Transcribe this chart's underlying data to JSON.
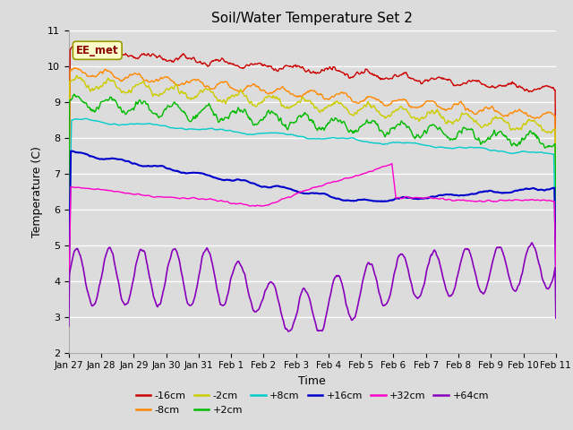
{
  "title": "Soil/Water Temperature Set 2",
  "xlabel": "Time",
  "ylabel": "Temperature (C)",
  "ylim": [
    2.0,
    11.0
  ],
  "yticks": [
    2.0,
    3.0,
    4.0,
    5.0,
    6.0,
    7.0,
    8.0,
    9.0,
    10.0,
    11.0
  ],
  "background_color": "#dcdcdc",
  "series": [
    {
      "label": "-16cm",
      "color": "#cc0000"
    },
    {
      "label": "-8cm",
      "color": "#ff8800"
    },
    {
      "label": "-2cm",
      "color": "#cccc00"
    },
    {
      "label": "+2cm",
      "color": "#00bb00"
    },
    {
      "label": "+8cm",
      "color": "#00cccc"
    },
    {
      "label": "+16cm",
      "color": "#0000cc"
    },
    {
      "label": "+32cm",
      "color": "#ff00cc"
    },
    {
      "label": "+64cm",
      "color": "#8800bb"
    }
  ],
  "annotation_text": "EE_met",
  "num_days": 15,
  "xtick_labels": [
    "Jan 27",
    "Jan 28",
    "Jan 29",
    "Jan 30",
    "Jan 31",
    "Feb 1",
    "Feb 2",
    "Feb 3",
    "Feb 4",
    "Feb 5",
    "Feb 6",
    "Feb 7",
    "Feb 8",
    "Feb 9",
    "Feb 10",
    "Feb 11"
  ],
  "legend_row1": [
    "-16cm",
    "-8cm",
    "-2cm",
    "+2cm",
    "+8cm",
    "+16cm"
  ],
  "legend_row2": [
    "+32cm",
    "+64cm"
  ]
}
